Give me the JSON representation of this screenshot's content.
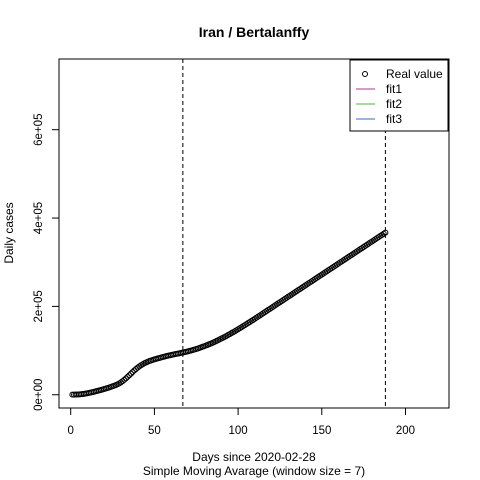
{
  "chart_data": {
    "type": "scatter",
    "title": "Iran / Bertalanffy",
    "xlabel": "Days since 2020-02-28",
    "xlabel_sub": "Simple Moving Avarage (window size = 7)",
    "ylabel": "Daily cases",
    "xlim": [
      -7,
      226
    ],
    "ylim": [
      -30000,
      760000
    ],
    "x_ticks": [
      0,
      50,
      100,
      150,
      200
    ],
    "x_tick_labels": [
      "0",
      "50",
      "100",
      "150",
      "200"
    ],
    "y_ticks": [
      0,
      200000,
      400000,
      600000
    ],
    "y_tick_labels": [
      "0e+00",
      "2e+05",
      "4e+05",
      "6e+05"
    ],
    "vlines": [
      67,
      188
    ],
    "legend": {
      "position": "top-right",
      "entries": [
        {
          "label": "Real value",
          "kind": "point",
          "color": "#000000"
        },
        {
          "label": "fit1",
          "kind": "line",
          "color": "#a23f8f"
        },
        {
          "label": "fit2",
          "kind": "line",
          "color": "#4db33d"
        },
        {
          "label": "fit3",
          "kind": "line",
          "color": "#2f6fc5"
        }
      ]
    },
    "series": [
      {
        "name": "Real value",
        "x": [
          1,
          2,
          3,
          4,
          5,
          6,
          7,
          8,
          9,
          10,
          11,
          12,
          13,
          14,
          15,
          16,
          17,
          18,
          19,
          20,
          21,
          22,
          23,
          24,
          25,
          26,
          27,
          28,
          29,
          30,
          31,
          32,
          33,
          34,
          35,
          36,
          37,
          38,
          39,
          40,
          41,
          42,
          43,
          44,
          45,
          46,
          47,
          48,
          49,
          50,
          51,
          52,
          53,
          54,
          55,
          56,
          57,
          58,
          59,
          60,
          61,
          62,
          63,
          64,
          65,
          66,
          67,
          68,
          69,
          70,
          71,
          72,
          73,
          74,
          75,
          76,
          77,
          78,
          79,
          80,
          81,
          82,
          83,
          84,
          85,
          86,
          87,
          88,
          89,
          90,
          91,
          92,
          93,
          94,
          95,
          96,
          97,
          98,
          99,
          100,
          101,
          102,
          103,
          104,
          105,
          106,
          107,
          108,
          109,
          110,
          111,
          112,
          113,
          114,
          115,
          116,
          117,
          118,
          119,
          120,
          121,
          122,
          123,
          124,
          125,
          126,
          127,
          128,
          129,
          130,
          131,
          132,
          133,
          134,
          135,
          136,
          137,
          138,
          139,
          140,
          141,
          142,
          143,
          144,
          145,
          146,
          147,
          148,
          149,
          150,
          151,
          152,
          153,
          154,
          155,
          156,
          157,
          158,
          159,
          160,
          161,
          162,
          163,
          164,
          165,
          166,
          167,
          168,
          169,
          170,
          171,
          172,
          173,
          174,
          175,
          176,
          177,
          178,
          179,
          180,
          181,
          182,
          183,
          184,
          185,
          186,
          187,
          188
        ],
        "y": [
          200,
          300,
          450,
          650,
          900,
          1200,
          1600,
          2100,
          2700,
          3400,
          4200,
          5000,
          5900,
          6800,
          7800,
          8800,
          9800,
          10800,
          11900,
          13000,
          14100,
          15300,
          16500,
          17800,
          19100,
          20500,
          22000,
          23800,
          25800,
          28100,
          30800,
          33800,
          37100,
          40600,
          44200,
          47900,
          51600,
          55100,
          58300,
          61300,
          64100,
          66700,
          69100,
          71200,
          73100,
          74800,
          76300,
          77600,
          78800,
          80000,
          81100,
          82200,
          83300,
          84400,
          85400,
          86400,
          87400,
          88300,
          89200,
          90000,
          90800,
          91600,
          92400,
          93200,
          94000,
          94800,
          95600,
          96400,
          97300,
          98200,
          99200,
          100200,
          101300,
          102400,
          103600,
          104800,
          106100,
          107400,
          108800,
          110200,
          111700,
          113200,
          114800,
          116400,
          118100,
          119800,
          121600,
          123400,
          125300,
          127200,
          129100,
          131100,
          133100,
          135200,
          137300,
          139400,
          141600,
          143800,
          146000,
          148300,
          150600,
          152900,
          155200,
          157600,
          160000,
          162400,
          164800,
          167200,
          169600,
          172000,
          174500,
          177000,
          179500,
          182000,
          184500,
          187000,
          189500,
          192000,
          194500,
          197000,
          199500,
          202000,
          204500,
          207000,
          209500,
          212000,
          214500,
          217000,
          219500,
          222000,
          224500,
          227000,
          229500,
          232000,
          234500,
          237000,
          239500,
          242000,
          244500,
          247000,
          249500,
          252000,
          254500,
          257000,
          259500,
          262000,
          264500,
          267000,
          269500,
          272000,
          274500,
          277000,
          279500,
          282000,
          284500,
          287000,
          289500,
          292000,
          294500,
          297000,
          299500,
          302000,
          304500,
          307000,
          309500,
          312000,
          314500,
          317000,
          319500,
          322000,
          324500,
          327000,
          329500,
          332000,
          334500,
          337000,
          339500,
          342000,
          344500,
          347000,
          349500,
          352000,
          354500,
          357000,
          359500,
          362000,
          364500,
          367000
        ]
      }
    ]
  }
}
